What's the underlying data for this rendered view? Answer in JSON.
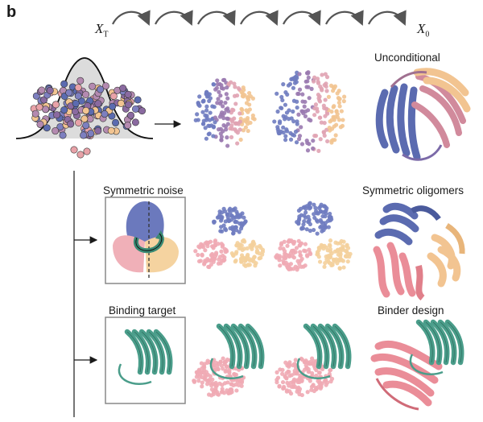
{
  "panel_letter": "b",
  "time_axis": {
    "start_label": "X",
    "start_sub": "T",
    "end_label": "X",
    "end_sub": "0",
    "step_count": 7
  },
  "rows": [
    {
      "id": "unconditional",
      "label": "Unconditional"
    },
    {
      "id": "symmetric",
      "condition_label": "Symmetric noise",
      "label": "Symmetric oligomers"
    },
    {
      "id": "binder",
      "condition_label": "Binding target",
      "label": "Binder design"
    }
  ],
  "colors": {
    "blue": "#5b6bb0",
    "purple": "#8a6aa0",
    "pink": "#e8a2a8",
    "salmon": "#e07f8a",
    "peach": "#f2c491",
    "teal": "#4a9d8a",
    "gray": "#555555"
  }
}
